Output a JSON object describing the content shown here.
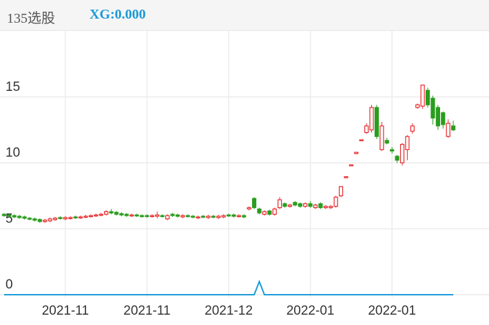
{
  "header": {
    "title": "135选股",
    "xg_label": "XG:0.000"
  },
  "chart_data": {
    "type": "candlestick",
    "up_color": "#e8262a",
    "down_color": "#2a9d1f",
    "grid": true,
    "ylim": [
      0,
      20
    ],
    "yticks": [
      0,
      5,
      10,
      15
    ],
    "xlim": [
      -0.8,
      95
    ],
    "xticks": [
      {
        "value": 12,
        "label": "2021-11"
      },
      {
        "value": 28,
        "label": "2021-11"
      },
      {
        "value": 44,
        "label": "2021-12"
      },
      {
        "value": 60,
        "label": "2022-01"
      },
      {
        "value": 76,
        "label": "2022-01"
      }
    ],
    "ohlc": [
      [
        6.1,
        6.2,
        5.9,
        6.0
      ],
      [
        6.05,
        6.15,
        5.85,
        5.95
      ],
      [
        6.0,
        6.1,
        5.8,
        5.9
      ],
      [
        5.95,
        6.05,
        5.75,
        5.85
      ],
      [
        5.9,
        6.0,
        5.7,
        5.8
      ],
      [
        5.8,
        5.9,
        5.65,
        5.75
      ],
      [
        5.75,
        5.85,
        5.55,
        5.65
      ],
      [
        5.7,
        5.8,
        5.45,
        5.55
      ],
      [
        5.55,
        5.75,
        5.45,
        5.65
      ],
      [
        5.6,
        5.85,
        5.5,
        5.75
      ],
      [
        5.7,
        5.9,
        5.6,
        5.8
      ],
      [
        5.85,
        5.95,
        5.7,
        5.8
      ],
      [
        5.75,
        5.95,
        5.65,
        5.85
      ],
      [
        5.8,
        5.95,
        5.7,
        5.85
      ],
      [
        5.9,
        6.0,
        5.75,
        5.85
      ],
      [
        5.85,
        6.0,
        5.75,
        5.9
      ],
      [
        5.9,
        6.05,
        5.8,
        5.95
      ],
      [
        5.95,
        6.1,
        5.85,
        6.0
      ],
      [
        6.0,
        6.15,
        5.9,
        6.05
      ],
      [
        6.05,
        6.2,
        5.95,
        6.1
      ],
      [
        6.1,
        6.4,
        6.0,
        6.3
      ],
      [
        6.3,
        6.5,
        6.1,
        6.2
      ],
      [
        6.25,
        6.35,
        6.0,
        6.1
      ],
      [
        6.15,
        6.25,
        5.95,
        6.05
      ],
      [
        6.1,
        6.2,
        5.9,
        6.0
      ],
      [
        6.0,
        6.15,
        5.9,
        6.05
      ],
      [
        6.05,
        6.15,
        5.9,
        6.0
      ],
      [
        6.0,
        6.1,
        5.85,
        5.95
      ],
      [
        6.0,
        6.1,
        5.85,
        5.95
      ],
      [
        5.95,
        6.1,
        5.85,
        6.0
      ],
      [
        5.95,
        6.3,
        5.8,
        6.05
      ],
      [
        6.0,
        6.1,
        5.85,
        5.95
      ],
      [
        5.75,
        6.1,
        5.65,
        6.0
      ],
      [
        6.1,
        6.2,
        5.9,
        6.0
      ],
      [
        6.05,
        6.15,
        5.85,
        5.95
      ],
      [
        5.9,
        6.1,
        5.8,
        6.0
      ],
      [
        6.0,
        6.1,
        5.85,
        5.95
      ],
      [
        5.95,
        6.05,
        5.8,
        5.9
      ],
      [
        5.85,
        6.0,
        5.75,
        5.9
      ],
      [
        5.95,
        6.05,
        5.8,
        5.9
      ],
      [
        5.85,
        6.05,
        5.75,
        5.95
      ],
      [
        5.95,
        6.05,
        5.8,
        5.9
      ],
      [
        5.85,
        6.05,
        5.75,
        5.95
      ],
      [
        5.9,
        6.1,
        5.8,
        6.0
      ],
      [
        6.05,
        6.15,
        5.9,
        6.0
      ],
      [
        6.05,
        6.15,
        5.85,
        5.95
      ],
      [
        5.95,
        6.1,
        5.85,
        6.0
      ],
      [
        6.0,
        6.1,
        5.8,
        5.9
      ],
      [
        6.5,
        6.7,
        6.4,
        6.6
      ],
      [
        7.3,
        7.4,
        6.5,
        6.6
      ],
      [
        6.5,
        6.6,
        6.1,
        6.2
      ],
      [
        6.1,
        6.4,
        6.0,
        6.3
      ],
      [
        6.35,
        6.45,
        6.0,
        6.1
      ],
      [
        6.1,
        6.6,
        6.0,
        6.5
      ],
      [
        6.6,
        7.4,
        6.5,
        7.2
      ],
      [
        6.9,
        7.0,
        6.6,
        6.7
      ],
      [
        6.7,
        6.9,
        6.6,
        6.8
      ],
      [
        7.0,
        7.1,
        6.7,
        6.8
      ],
      [
        6.9,
        7.0,
        6.6,
        6.7
      ],
      [
        6.7,
        7.0,
        6.6,
        6.9
      ],
      [
        6.9,
        7.1,
        6.6,
        6.7
      ],
      [
        6.6,
        6.9,
        6.5,
        6.8
      ],
      [
        6.9,
        7.0,
        6.5,
        6.6
      ],
      [
        6.6,
        6.8,
        6.5,
        6.7
      ],
      [
        6.6,
        6.8,
        6.5,
        6.7
      ],
      [
        6.7,
        7.5,
        6.6,
        7.4
      ],
      [
        7.5,
        8.2,
        7.4,
        8.2
      ],
      [
        8.9,
        8.95,
        8.85,
        8.95
      ],
      [
        9.8,
        9.85,
        9.75,
        9.85
      ],
      [
        10.7,
        10.8,
        10.65,
        10.8
      ],
      [
        11.7,
        11.75,
        11.65,
        11.75
      ],
      [
        12.3,
        13.0,
        12.2,
        12.8
      ],
      [
        12.5,
        14.4,
        12.3,
        14.2
      ],
      [
        14.2,
        14.4,
        11.8,
        12.0
      ],
      [
        11.0,
        13.1,
        10.9,
        12.8
      ],
      [
        11.7,
        11.9,
        11.4,
        11.5
      ],
      [
        11.0,
        11.2,
        10.7,
        10.9
      ],
      [
        10.5,
        10.6,
        10.0,
        10.2
      ],
      [
        10.0,
        11.5,
        9.8,
        11.4
      ],
      [
        11.0,
        12.1,
        10.2,
        12.0
      ],
      [
        12.4,
        13.0,
        12.2,
        12.8
      ],
      [
        14.2,
        14.5,
        14.1,
        14.4
      ],
      [
        14.3,
        15.9,
        14.1,
        15.9
      ],
      [
        15.5,
        15.7,
        14.2,
        14.4
      ],
      [
        14.9,
        15.1,
        12.9,
        13.4
      ],
      [
        14.2,
        14.4,
        12.5,
        12.8
      ],
      [
        13.8,
        13.9,
        12.6,
        12.9
      ],
      [
        12.0,
        13.3,
        11.9,
        13.0
      ],
      [
        12.8,
        13.2,
        12.4,
        12.5
      ]
    ],
    "indicator": {
      "color": "#1a9bd7",
      "axis": "y2",
      "values": [
        0,
        0,
        0,
        0,
        0,
        0,
        0,
        0,
        0,
        0,
        0,
        0,
        0,
        0,
        0,
        0,
        0,
        0,
        0,
        0,
        0,
        0,
        0,
        0,
        0,
        0,
        0,
        0,
        0,
        0,
        0,
        0,
        0,
        0,
        0,
        0,
        0,
        0,
        0,
        0,
        0,
        0,
        0,
        0,
        0,
        0,
        0,
        0,
        0,
        0,
        1,
        0,
        0,
        0,
        0,
        0,
        0,
        0,
        0,
        0,
        0,
        0,
        0,
        0,
        0,
        0,
        0,
        0,
        0,
        0,
        0,
        0,
        0,
        0,
        0,
        0,
        0,
        0,
        0,
        0,
        0,
        0,
        0,
        0,
        0,
        0,
        0,
        0,
        0
      ]
    },
    "y2lim": [
      0,
      20
    ]
  }
}
